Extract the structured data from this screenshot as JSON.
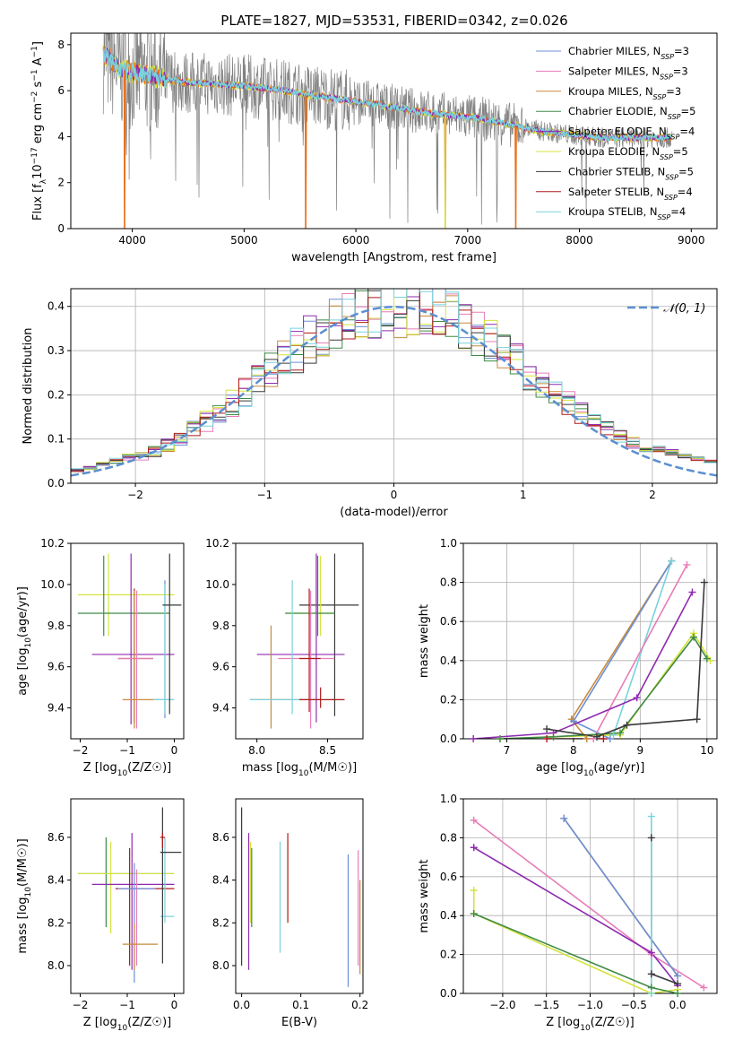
{
  "figure": {
    "title": "PLATE=1827, MJD=53531, FIBERID=0342, z=0.026"
  },
  "colors": {
    "Chabrier MILES": "#6c8fd6",
    "Salpeter MILES": "#e77db8",
    "Kroupa MILES": "#c98a3c",
    "Chabrier ELODIE": "#3e8a46",
    "Salpeter ELODIE": "#8e2bb0",
    "Kroupa ELODIE": "#d5e33b",
    "Chabrier STELIB": "#3a3a3a",
    "Salpeter STELIB": "#b01818",
    "Kroupa STELIB": "#79d2dc",
    "data": "#808080",
    "model_main": "#e8701a",
    "normal": "#5b8fd0"
  },
  "chart_data": [
    {
      "id": "spectrum",
      "type": "line",
      "xlabel": "wavelength [Angstrom, rest frame]",
      "ylabel_html": "Flux [f_λ10^-17 erg cm^-2 s^-1 A^-1]",
      "xlim": [
        3450,
        9230
      ],
      "ylim": [
        0,
        8.5
      ],
      "xticks": [
        4000,
        5000,
        6000,
        7000,
        8000,
        9000
      ],
      "yticks": [
        0,
        2,
        4,
        6,
        8
      ],
      "legend_position": "upper-right",
      "legend": [
        {
          "name": "Chabrier MILES",
          "nssp": "3"
        },
        {
          "name": "Salpeter MILES",
          "nssp": "3"
        },
        {
          "name": "Kroupa MILES",
          "nssp": "3"
        },
        {
          "name": "Chabrier ELODIE",
          "nssp": "5"
        },
        {
          "name": "Salpeter ELODIE",
          "nssp": "4"
        },
        {
          "name": "Kroupa ELODIE",
          "nssp": "5"
        },
        {
          "name": "Chabrier STELIB",
          "nssp": "5"
        },
        {
          "name": "Salpeter STELIB",
          "nssp": "4"
        },
        {
          "name": "Kroupa STELIB",
          "nssp": "4"
        }
      ],
      "model_continuum": {
        "x": [
          3730,
          3800,
          3900,
          4000,
          4100,
          4200,
          4300,
          4400,
          4500,
          4700,
          5000,
          5300,
          5600,
          5900,
          6200,
          6500,
          6800,
          7100,
          7400,
          7600,
          7800,
          8000,
          8200,
          8500,
          8800
        ],
        "y": [
          7.6,
          7.4,
          6.9,
          6.8,
          6.7,
          6.6,
          6.5,
          6.4,
          6.35,
          6.3,
          6.2,
          6.05,
          5.8,
          5.6,
          5.4,
          5.15,
          4.95,
          4.8,
          4.5,
          4.3,
          4.15,
          4.05,
          3.95,
          3.95,
          3.95
        ]
      },
      "absorption_dips": [
        {
          "x": 3930,
          "depth": 0
        },
        {
          "x": 5550,
          "depth": 0
        },
        {
          "x": 6800,
          "depth": 0
        },
        {
          "x": 7430,
          "depth": 0
        }
      ]
    },
    {
      "id": "residuals",
      "type": "bar",
      "xlabel": "(data-model)/error",
      "ylabel": "Normed distribution",
      "xlim": [
        -2.5,
        2.5
      ],
      "ylim": [
        0,
        0.44
      ],
      "xticks": [
        -2,
        -1,
        0,
        1,
        2
      ],
      "yticks": [
        0.0,
        0.1,
        0.2,
        0.3,
        0.4
      ],
      "grid": true,
      "legend_position": "upper-right",
      "legend_label": "N(0,1)",
      "bin_width": 0.1
    },
    {
      "id": "age-vs-Z",
      "type": "scatter",
      "xlabel": "Z [log10(Z/Z☉)]",
      "ylabel": "age  [log10(age/yr)]",
      "xlim": [
        -2.2,
        0.2
      ],
      "ylim": [
        9.25,
        10.2
      ],
      "xticks": [
        -2,
        -1,
        0
      ],
      "yticks": [
        9.4,
        9.6,
        9.8,
        10.0,
        10.2
      ],
      "points": [
        {
          "series": "Kroupa ELODIE",
          "x": -1.4,
          "xe": 0.1,
          "y": 9.95,
          "ye": 0.2,
          "hx": -1.4,
          "hy": 9.86,
          "hw": [
            -2.05,
            0.0
          ]
        },
        {
          "series": "Chabrier ELODIE",
          "x": -1.5,
          "y": 9.86,
          "x0": -2.05,
          "x1": -0.1,
          "y0": 9.75,
          "y1": 10.14
        },
        {
          "series": "Salpeter ELODIE",
          "x": -0.92,
          "y": 9.66,
          "x0": -1.75,
          "x1": 0.0,
          "y0": 9.32,
          "y1": 10.15
        },
        {
          "series": "Salpeter STELIB",
          "x": -0.85,
          "y": 9.64,
          "x0": -1.2,
          "x1": -0.45,
          "y0": 9.33,
          "y1": 9.98
        },
        {
          "series": "Salpeter MILES",
          "x": -0.8,
          "y": 9.64,
          "x0": -1.2,
          "x1": -0.45,
          "y0": 9.3,
          "y1": 9.97
        },
        {
          "series": "Kroupa MILES",
          "x": -0.85,
          "y": 9.44,
          "x0": -1.1,
          "x1": -0.35,
          "y0": 9.3,
          "y1": 9.97
        },
        {
          "series": "Chabrier MILES",
          "x": -0.2,
          "y": 9.44,
          "x0": -0.35,
          "x1": -0.05,
          "y0": 9.35,
          "y1": 10.02
        },
        {
          "series": "Kroupa STELIB",
          "x": -0.2,
          "y": 9.44,
          "x0": -0.45,
          "x1": 0.0,
          "y0": 9.37,
          "y1": 10.0
        },
        {
          "series": "Chabrier STELIB",
          "x": -0.1,
          "y": 9.9,
          "x0": -0.25,
          "x1": 0.15,
          "y0": 9.37,
          "y1": 10.15
        }
      ]
    },
    {
      "id": "age-vs-mass",
      "type": "scatter",
      "xlabel": "mass [log10(M/M☉)]",
      "xlim": [
        7.85,
        8.75
      ],
      "ylim": [
        9.25,
        10.2
      ],
      "xticks": [
        8.0,
        8.5
      ],
      "yticks": [
        9.4,
        9.6,
        9.8,
        10.0,
        10.2
      ],
      "points": [
        {
          "series": "Chabrier STELIB",
          "x": 8.55,
          "y": 9.9,
          "x0": 8.3,
          "x1": 8.72,
          "y0": 9.36,
          "y1": 10.15
        },
        {
          "series": "Kroupa ELODIE",
          "x": 8.45,
          "y": 9.86,
          "x0": 8.2,
          "x1": 8.55,
          "y0": 9.75,
          "y1": 10.14
        },
        {
          "series": "Chabrier ELODIE",
          "x": 8.43,
          "y": 9.86,
          "x0": 8.2,
          "x1": 8.55,
          "y0": 9.75,
          "y1": 10.14
        },
        {
          "series": "Salpeter ELODIE",
          "x": 8.42,
          "y": 9.66,
          "x0": 8.0,
          "x1": 8.62,
          "y0": 9.33,
          "y1": 10.15
        },
        {
          "series": "Salpeter MILES",
          "x": 8.38,
          "y": 9.64,
          "x0": 8.15,
          "x1": 8.55,
          "y0": 9.3,
          "y1": 9.97
        },
        {
          "series": "Salpeter STELIB",
          "x": 8.37,
          "y": 9.64,
          "x0": 8.3,
          "x1": 8.45,
          "y0": 9.38,
          "y1": 9.98
        },
        {
          "series": "Kroupa MILES",
          "x": 8.1,
          "y": 9.44,
          "x0": 7.95,
          "x1": 8.45,
          "y0": 9.3,
          "y1": 9.8
        },
        {
          "series": "Kroupa STELIB",
          "x": 8.25,
          "y": 9.44,
          "x0": 7.95,
          "x1": 8.55,
          "y0": 9.37,
          "y1": 10.02
        },
        {
          "series": "Salpeter STELIB",
          "x": 8.45,
          "y": 9.44,
          "x0": 8.3,
          "x1": 8.62,
          "y0": 9.4,
          "y1": 9.5
        }
      ]
    },
    {
      "id": "massweight-vs-age",
      "type": "line",
      "xlabel": "age  [log10(age/yr)]",
      "ylabel": "mass weight",
      "xlim": [
        6.35,
        10.15
      ],
      "ylim": [
        0,
        1.0
      ],
      "xticks": [
        7,
        8,
        9,
        10
      ],
      "yticks": [
        0.0,
        0.2,
        0.4,
        0.6,
        0.8,
        1.0
      ],
      "grid": true,
      "series": [
        {
          "name": "Kroupa MILES",
          "x": [
            8.2,
            7.97,
            9.47
          ],
          "y": [
            0.0,
            0.1,
            0.91
          ]
        },
        {
          "name": "Chabrier MILES",
          "x": [
            8.55,
            8.0,
            9.47
          ],
          "y": [
            0.0,
            0.09,
            0.91
          ]
        },
        {
          "name": "Kroupa STELIB",
          "x": [
            8.6,
            9.47
          ],
          "y": [
            0.02,
            0.91
          ]
        },
        {
          "name": "Salpeter MILES",
          "x": [
            8.3,
            9.7
          ],
          "y": [
            0.0,
            0.89
          ]
        },
        {
          "name": "Salpeter ELODIE",
          "x": [
            6.5,
            7.7,
            8.95,
            9.78
          ],
          "y": [
            0.0,
            0.03,
            0.21,
            0.75
          ]
        },
        {
          "name": "Kroupa ELODIE",
          "x": [
            6.9,
            7.7,
            8.7,
            9.8,
            10.05
          ],
          "y": [
            0.0,
            0.01,
            0.02,
            0.54,
            0.4
          ]
        },
        {
          "name": "Chabrier ELODIE",
          "x": [
            6.9,
            7.7,
            8.7,
            9.8,
            10.0
          ],
          "y": [
            0.0,
            0.01,
            0.03,
            0.52,
            0.41
          ]
        },
        {
          "name": "Chabrier STELIB",
          "x": [
            7.6,
            8.35,
            8.8,
            9.85,
            9.96
          ],
          "y": [
            0.05,
            0.01,
            0.07,
            0.1,
            0.8
          ]
        },
        {
          "name": "Salpeter STELIB",
          "x": [
            7.6,
            8.45
          ],
          "y": [
            0.0,
            0.0
          ]
        }
      ]
    },
    {
      "id": "mass-vs-Z",
      "type": "scatter",
      "xlabel": "Z [log10(Z/Z☉)]",
      "ylabel": "mass [log10(M/M☉)]",
      "xlim": [
        -2.2,
        0.2
      ],
      "ylim": [
        7.87,
        8.78
      ],
      "xticks": [
        -2,
        -1,
        0
      ],
      "yticks": [
        8.0,
        8.2,
        8.4,
        8.6
      ],
      "points": [
        {
          "series": "Chabrier ELODIE",
          "x": -1.45,
          "y": 8.43,
          "x0": -2.05,
          "x1": 0.0,
          "y0": 8.18,
          "y1": 8.6
        },
        {
          "series": "Kroupa ELODIE",
          "x": -1.35,
          "y": 8.43,
          "x0": -2.05,
          "x1": 0.0,
          "y0": 8.15,
          "y1": 8.58
        },
        {
          "series": "Salpeter ELODIE",
          "x": -0.9,
          "y": 8.38,
          "x0": -1.75,
          "x1": 0.0,
          "y0": 7.98,
          "y1": 8.62
        },
        {
          "series": "Salpeter STELIB",
          "x": -0.95,
          "y": 8.36,
          "x0": -1.25,
          "x1": 0.0,
          "y0": 8.0,
          "y1": 8.55
        },
        {
          "series": "Salpeter MILES",
          "x": -0.8,
          "y": 8.36,
          "x0": -1.2,
          "x1": -0.4,
          "y0": 8.0,
          "y1": 8.45
        },
        {
          "series": "Chabrier MILES",
          "x": -0.85,
          "y": 8.36,
          "x0": -1.2,
          "x1": -0.4,
          "y0": 7.92,
          "y1": 8.48
        },
        {
          "series": "Kroupa MILES",
          "x": -0.85,
          "y": 8.1,
          "x0": -1.1,
          "x1": -0.35,
          "y0": 7.98,
          "y1": 8.2
        },
        {
          "series": "Kroupa STELIB",
          "x": -0.2,
          "y": 8.23,
          "x0": -0.3,
          "x1": 0.0,
          "y0": 8.2,
          "y1": 8.6
        },
        {
          "series": "Chabrier STELIB",
          "x": -0.25,
          "y": 8.53,
          "x0": -0.3,
          "x1": 0.15,
          "y0": 8.01,
          "y1": 8.74
        },
        {
          "series": "Salpeter STELIB",
          "x": -0.25,
          "y": 8.6,
          "x0": -0.3,
          "x1": -0.2,
          "y0": 8.55,
          "y1": 8.62
        }
      ]
    },
    {
      "id": "mass-vs-EBV",
      "type": "scatter",
      "xlabel": "E(B-V)",
      "xlim": [
        -0.01,
        0.205
      ],
      "ylim": [
        7.87,
        8.78
      ],
      "xticks": [
        0.0,
        0.1,
        0.2
      ],
      "yticks": [
        8.0,
        8.2,
        8.4,
        8.6
      ],
      "bars": [
        {
          "series": "Chabrier STELIB",
          "x": 0.0,
          "y0": 8.0,
          "y1": 8.74
        },
        {
          "series": "Salpeter ELODIE",
          "x": 0.012,
          "y0": 7.98,
          "y1": 8.62
        },
        {
          "series": "Kroupa ELODIE",
          "x": 0.015,
          "y0": 8.2,
          "y1": 8.58
        },
        {
          "series": "Chabrier ELODIE",
          "x": 0.017,
          "y0": 8.18,
          "y1": 8.55
        },
        {
          "series": "Kroupa STELIB",
          "x": 0.065,
          "y0": 8.06,
          "y1": 8.58
        },
        {
          "series": "Salpeter STELIB",
          "x": 0.078,
          "y0": 8.2,
          "y1": 8.62
        },
        {
          "series": "Chabrier MILES",
          "x": 0.18,
          "y0": 7.9,
          "y1": 8.52
        },
        {
          "series": "Salpeter MILES",
          "x": 0.197,
          "y0": 8.0,
          "y1": 8.54
        },
        {
          "series": "Kroupa MILES",
          "x": 0.2,
          "y0": 7.96,
          "y1": 8.4
        }
      ]
    },
    {
      "id": "massweight-vs-Z",
      "type": "line",
      "xlabel": "Z [log10(Z/Z☉)]",
      "ylabel": "mass weight",
      "xlim": [
        -2.45,
        0.45
      ],
      "ylim": [
        0,
        1.0
      ],
      "xticks": [
        -2.0,
        -1.5,
        -1.0,
        -0.5,
        0.0
      ],
      "yticks": [
        0.0,
        0.2,
        0.4,
        0.6,
        0.8,
        1.0
      ],
      "grid": true,
      "series": [
        {
          "name": "Salpeter MILES",
          "x": [
            -2.33,
            -0.3,
            0.3
          ],
          "y": [
            0.89,
            0.2,
            0.03
          ]
        },
        {
          "name": "Kroupa MILES",
          "x": [
            -1.3,
            0.0
          ],
          "y": [
            0.9,
            0.09
          ]
        },
        {
          "name": "Chabrier MILES",
          "x": [
            -1.3,
            0.0
          ],
          "y": [
            0.9,
            0.09
          ]
        },
        {
          "name": "Salpeter ELODIE",
          "x": [
            -2.33,
            -0.3,
            0.0
          ],
          "y": [
            0.75,
            0.21,
            0.04
          ]
        },
        {
          "name": "Kroupa ELODIE",
          "x": [
            -2.33,
            -2.33,
            -0.3,
            0.0
          ],
          "y": [
            0.53,
            0.41,
            0.0,
            0.02
          ]
        },
        {
          "name": "Chabrier ELODIE",
          "x": [
            -2.33,
            -0.3,
            0.0
          ],
          "y": [
            0.41,
            0.03,
            0.0
          ]
        },
        {
          "name": "Chabrier STELIB",
          "x": [
            -0.3,
            -0.3,
            0.0
          ],
          "y": [
            0.8,
            0.1,
            0.05
          ]
        },
        {
          "name": "Kroupa STELIB",
          "x": [
            -0.3,
            -0.3
          ],
          "y": [
            0.91,
            0.0
          ]
        }
      ]
    }
  ]
}
